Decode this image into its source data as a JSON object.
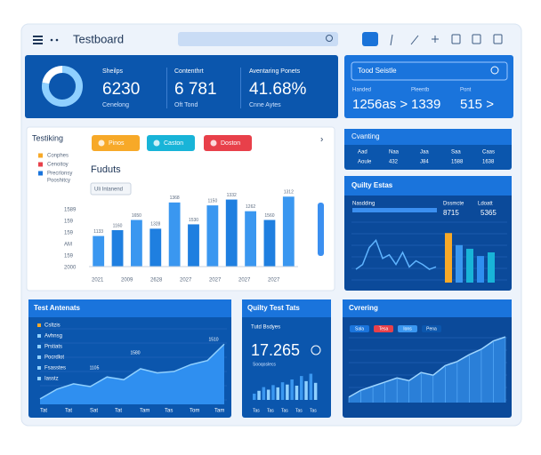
{
  "header": {
    "title": "Testboard"
  },
  "stats": [
    {
      "label": "Sheilps",
      "value": "6230",
      "sub": "Cenelong"
    },
    {
      "label": "Contenthrt",
      "value": "6 781",
      "sub": "Oft Tond"
    },
    {
      "label": "Aventaring Ponets",
      "value": "41.68%",
      "sub": "Cnne Aytes"
    }
  ],
  "donut": {
    "values": [
      78,
      22
    ]
  },
  "summary": {
    "search": "Tood Seistle",
    "items": [
      {
        "label": "Handed",
        "value": "1256as >"
      },
      {
        "label": "Pleentb",
        "value": "1339"
      },
      {
        "label": "Pont",
        "value": "515 >"
      }
    ]
  },
  "testing": {
    "title": "Testiking",
    "buttons": [
      "Pinos",
      "Caston",
      "Doston"
    ],
    "legend": [
      "Conphes",
      "Cenoitoy",
      "Precrlonsy",
      "Pooshitcy"
    ],
    "chart_title": "Fuduts",
    "chip": "Uli Intanend",
    "ylim": [
      0,
      100
    ],
    "ytick_labels": [
      "1589",
      "159",
      "159",
      "AM",
      "159",
      "2000"
    ],
    "xtick_labels": [
      "2021",
      "2009",
      "2628",
      "2027",
      "2027",
      "2027",
      "2027"
    ],
    "values": [
      42,
      50,
      64,
      52,
      88,
      58,
      84,
      92,
      76,
      64,
      96
    ],
    "bar_tags": [
      "1133",
      "1160",
      "1650",
      "1328",
      "1368",
      "1530",
      "1150",
      "1332",
      "1262",
      "1560",
      "1312"
    ]
  },
  "counting": {
    "title": "Cvanting",
    "rows": [
      [
        "Aad",
        "Naa",
        "Jaa",
        "Saa",
        "Caas"
      ],
      [
        "Aoule",
        "432",
        "J84",
        "1588",
        "1638"
      ]
    ]
  },
  "quality": {
    "title": "Quilty Estas",
    "labels": [
      "Nasdding",
      "Dssmcte",
      "Ldoatt"
    ],
    "figures": [
      "8715",
      "5365"
    ],
    "ylim": [
      0,
      100
    ],
    "line": [
      22,
      30,
      58,
      70,
      40,
      46,
      30,
      50,
      26,
      36,
      30,
      22,
      26
    ],
    "bars": [
      82,
      62,
      56,
      44,
      50
    ]
  },
  "antenats": {
    "title": "Test Antenats",
    "legend": [
      "Csltzis",
      "Avhnsg",
      "Prstiats",
      "Pocrdlot",
      "Fsasstes",
      "Iasstz"
    ],
    "tags": [
      "1580",
      "1105",
      "1510"
    ],
    "xtick_labels": [
      "Tat",
      "Tat",
      "Sat",
      "Tat",
      "Tam",
      "Tas",
      "Tom",
      "Tam"
    ],
    "ylim": [
      0,
      100
    ],
    "values": [
      8,
      22,
      30,
      26,
      40,
      36,
      52,
      46,
      48,
      58,
      64,
      88
    ]
  },
  "quality_tests": {
    "title": "Quilty Test Tats",
    "label": "Tutd Bsdyes",
    "value": "17.265",
    "sub": "Sooqoslecs",
    "ylim": [
      0,
      100
    ],
    "bars": [
      22,
      32,
      45,
      36,
      52,
      44,
      62,
      54,
      72,
      50,
      84,
      66,
      92,
      60
    ],
    "xtick_labels": [
      "Tas",
      "Tas",
      "Tas",
      "Tas",
      "Tas"
    ]
  },
  "covering": {
    "title": "Cvrering",
    "chips": [
      "Sala",
      "Tesa",
      "Ions",
      "Pena"
    ],
    "ylim": [
      0,
      100
    ],
    "values": [
      8,
      18,
      24,
      30,
      36,
      32,
      44,
      40,
      54,
      60,
      70,
      78,
      90,
      96
    ]
  }
}
